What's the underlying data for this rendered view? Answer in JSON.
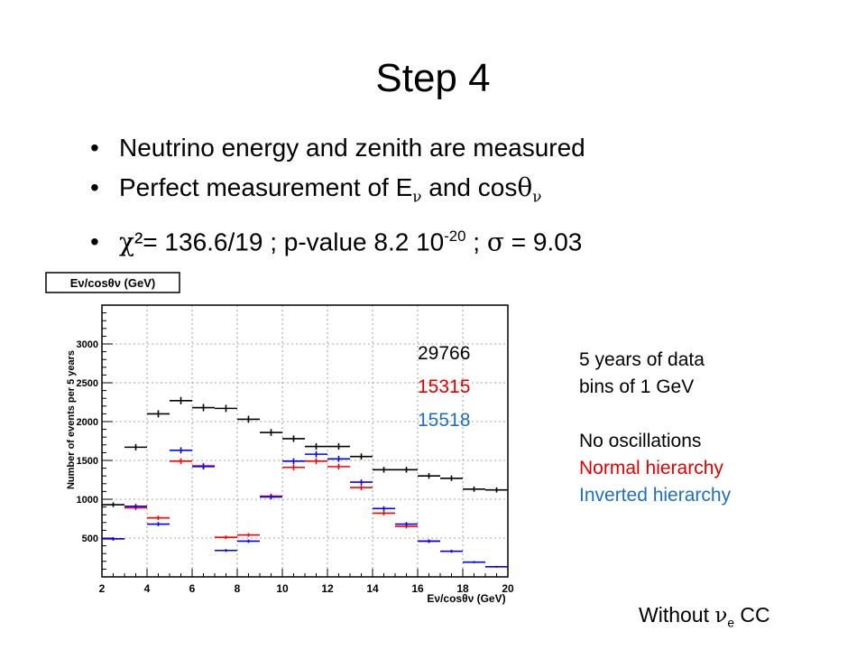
{
  "slide": {
    "title": "Step 4",
    "bullets": [
      {
        "text": "Neutrino energy and zenith are measured"
      },
      {
        "prefix": "Perfect measurement of E",
        "sub1": "ν",
        "middle": " and cos",
        "theta": "θ",
        "sub2": "ν"
      },
      {
        "chi": "χ",
        "chi_rest": "²= 136.6/19 ; p-value 8.2 10",
        "exp": "-20",
        "sep": " ; ",
        "sigma": "σ",
        "sigma_rest": " = 9.03"
      }
    ],
    "bullet_char": "•"
  },
  "counts": {
    "no_osc": "29766",
    "normal": "15315",
    "inverted": "15518"
  },
  "legend": {
    "line1": "5 years of data",
    "line2": "bins of 1 GeV",
    "no_osc": "No oscillations",
    "normal": "Normal hierarchy",
    "inverted": "Inverted hierarchy"
  },
  "footer": {
    "prefix": "Without  ",
    "nu": "ν",
    "sub": "e",
    "suffix": " CC"
  },
  "colors": {
    "no_osc": "#000000",
    "normal": "#ff0000",
    "inverted": "#0000ff",
    "normal_text": "#e00000",
    "inverted_text": "#1f6fbf"
  },
  "chart_data": {
    "type": "scatter",
    "title": "Eν/cosθν (GeV)",
    "xlabel": "Eν/cosθν (GeV)",
    "ylabel": "Number of events per 5 years",
    "xlim": [
      2,
      20
    ],
    "ylim": [
      0,
      3500
    ],
    "x_ticks": [
      2,
      4,
      6,
      8,
      10,
      12,
      14,
      16,
      18,
      20
    ],
    "y_ticks": [
      500,
      1000,
      1500,
      2000,
      2500,
      3000
    ],
    "grid": true,
    "bin_width": 1,
    "x": [
      2.5,
      3.5,
      4.5,
      5.5,
      6.5,
      7.5,
      8.5,
      9.5,
      10.5,
      11.5,
      12.5,
      13.5,
      14.5,
      15.5,
      16.5,
      17.5,
      18.5,
      19.5
    ],
    "series": [
      {
        "key": "no_osc",
        "values": [
          930,
          1670,
          2100,
          2270,
          2180,
          2170,
          2030,
          1860,
          1780,
          1680,
          1680,
          1550,
          1380,
          1380,
          1300,
          1270,
          1130,
          1120
        ]
      },
      {
        "key": "normal",
        "values": [
          490,
          890,
          760,
          1490,
          1430,
          510,
          540,
          1040,
          1410,
          1490,
          1420,
          1150,
          820,
          650,
          460,
          330,
          null,
          null
        ]
      },
      {
        "key": "inverted",
        "values": [
          490,
          910,
          680,
          1630,
          1420,
          340,
          460,
          1030,
          1490,
          1580,
          1520,
          1220,
          880,
          680,
          460,
          330,
          190,
          130
        ]
      }
    ]
  }
}
